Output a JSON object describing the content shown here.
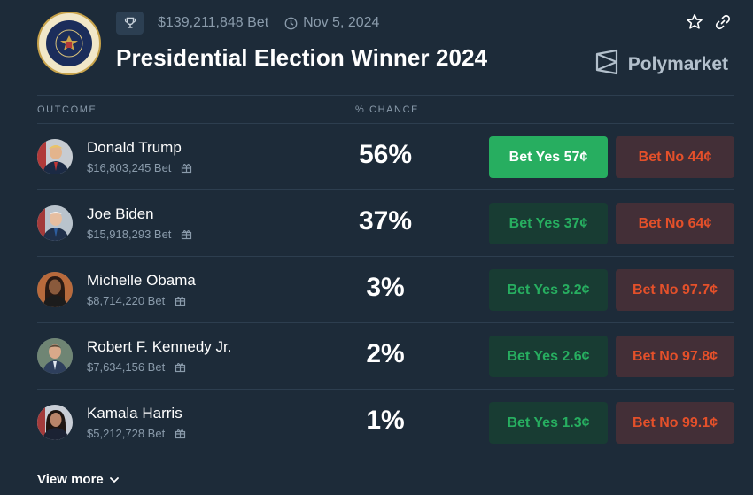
{
  "header": {
    "volume": "$139,211,848 Bet",
    "date": "Nov 5, 2024",
    "title": "Presidential Election Winner 2024",
    "brand": "Polymarket"
  },
  "table": {
    "col_outcome": "OUTCOME",
    "col_chance": "% CHANCE"
  },
  "rows": [
    {
      "name": "Donald Trump",
      "volume": "$16,803,245 Bet",
      "chance": "56%",
      "yes": "Bet Yes 57¢",
      "no": "Bet No 44¢"
    },
    {
      "name": "Joe Biden",
      "volume": "$15,918,293 Bet",
      "chance": "37%",
      "yes": "Bet Yes 37¢",
      "no": "Bet No 64¢"
    },
    {
      "name": "Michelle Obama",
      "volume": "$8,714,220 Bet",
      "chance": "3%",
      "yes": "Bet Yes 3.2¢",
      "no": "Bet No 97.7¢"
    },
    {
      "name": "Robert F. Kennedy Jr.",
      "volume": "$7,634,156 Bet",
      "chance": "2%",
      "yes": "Bet Yes 2.6¢",
      "no": "Bet No 97.8¢"
    },
    {
      "name": "Kamala Harris",
      "volume": "$5,212,728 Bet",
      "chance": "1%",
      "yes": "Bet Yes 1.3¢",
      "no": "Bet No 99.1¢"
    }
  ],
  "view_more": "View more",
  "colors": {
    "background": "#1d2b39",
    "yes_green": "#27ae60",
    "no_red": "#e4502a"
  },
  "icons": [
    "presidential-seal-icon",
    "trophy-icon",
    "clock-icon",
    "star-icon",
    "link-icon",
    "polymarket-logo-icon",
    "gift-icon",
    "chevron-down-icon"
  ]
}
